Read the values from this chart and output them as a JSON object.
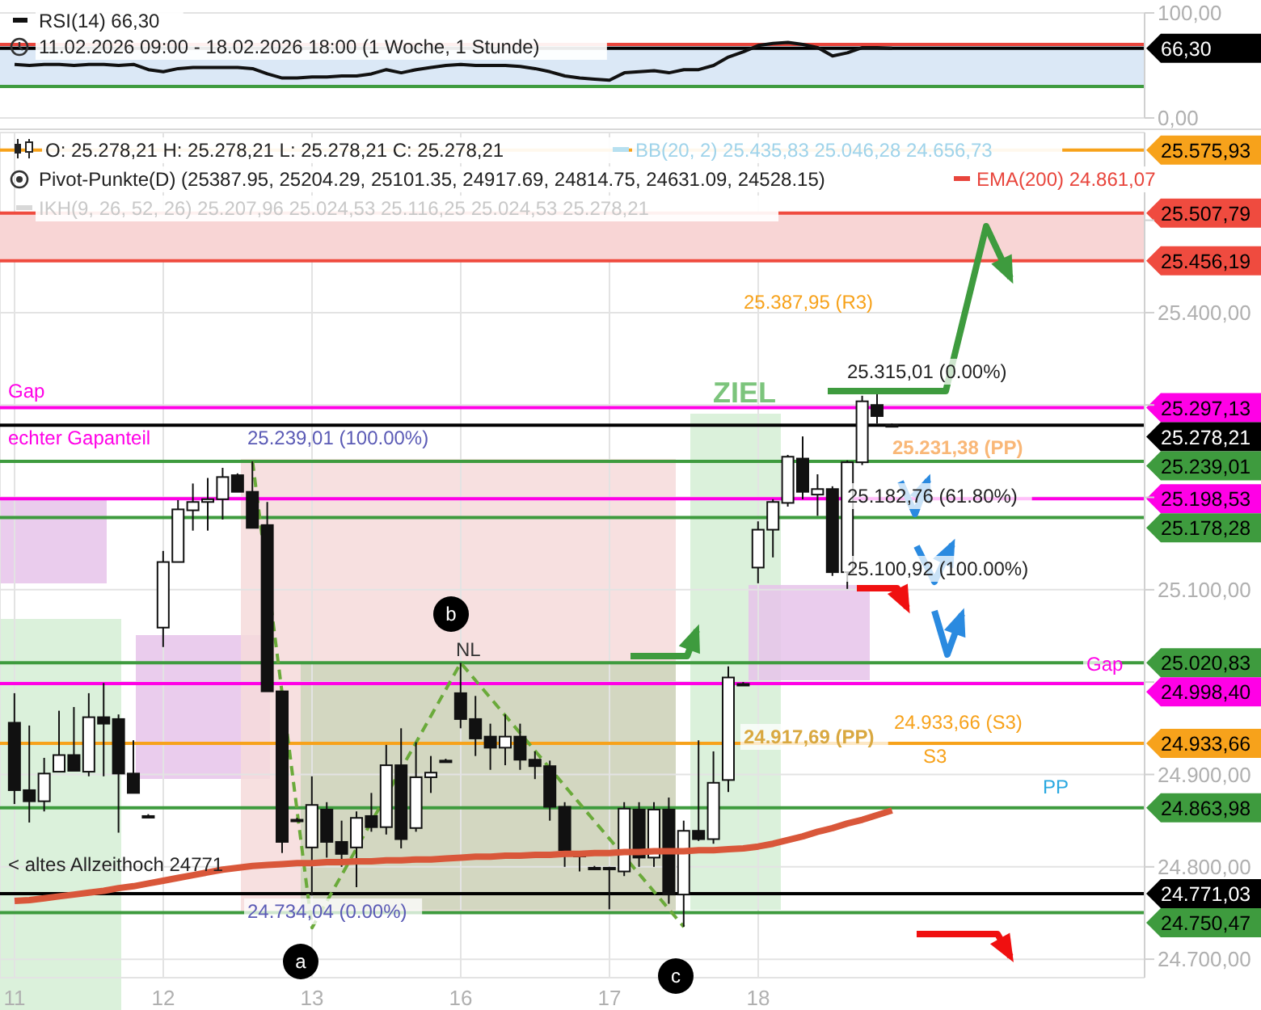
{
  "chart_data": [
    {
      "type": "line",
      "color": "#111111",
      "grid": "y",
      "tick_labels": "y",
      "categories": [
        null,
        null,
        null,
        null,
        null,
        null,
        null,
        null,
        null,
        null,
        null,
        null,
        null,
        null,
        null,
        null,
        null,
        null,
        null,
        null,
        null,
        null,
        null,
        null,
        null,
        null,
        null,
        null,
        null,
        null,
        null,
        null,
        null,
        null,
        null,
        null,
        null,
        null,
        null,
        null,
        null,
        null,
        null,
        null,
        null,
        null,
        null,
        null,
        null,
        null,
        null,
        null,
        null,
        null,
        null,
        null,
        null,
        null,
        null,
        null,
        null,
        null,
        null,
        null,
        null,
        null,
        null,
        null,
        null,
        null,
        null,
        null,
        null,
        null,
        null,
        null
      ],
      "values": [
        51,
        50,
        51,
        51,
        50,
        51,
        51,
        50,
        51,
        46,
        44,
        47,
        48,
        48,
        48,
        48,
        47,
        42,
        38,
        38,
        39,
        39,
        40,
        40,
        42,
        46,
        43,
        46,
        48,
        50,
        51,
        50,
        50,
        50,
        49,
        47,
        44,
        40,
        38,
        37,
        36,
        43,
        44,
        45,
        43,
        46,
        46,
        50,
        58,
        63,
        69,
        71,
        72,
        70,
        67,
        59,
        62,
        67,
        67,
        66.3,
        null,
        null,
        null,
        null,
        null,
        null,
        null,
        null,
        null,
        null,
        null,
        null,
        null,
        null,
        null,
        null
      ],
      "ylim": [
        0,
        100
      ],
      "yticks": [
        {
          "value": 0,
          "label": "0,00"
        },
        {
          "value": 100,
          "label": "100,00"
        }
      ],
      "ref_lines": [
        {
          "axis": "y",
          "value": 70,
          "color": "#e8453c"
        },
        {
          "axis": "y",
          "value": 30,
          "color": "#3e9b3e"
        },
        {
          "axis": "y",
          "value": 66.3,
          "label": "66,30",
          "color": "#000000"
        }
      ],
      "bands": [
        {
          "axis": "y",
          "from": 30,
          "to": 70,
          "color": "#dbe8f6"
        }
      ],
      "annotations": [
        "RSI(14)  66,30",
        "11.02.2026 09:00 - 18.02.2026 18:00  (1 Woche, 1 Stunde)"
      ]
    },
    {
      "type": "candlestick",
      "color": "#111111",
      "grid": true,
      "categories": [
        "11",
        null,
        null,
        null,
        null,
        null,
        null,
        null,
        null,
        null,
        "12",
        null,
        null,
        null,
        null,
        null,
        null,
        null,
        null,
        null,
        "13",
        null,
        null,
        null,
        null,
        null,
        null,
        null,
        null,
        null,
        "16",
        null,
        null,
        null,
        null,
        null,
        null,
        null,
        null,
        null,
        "17",
        null,
        null,
        null,
        null,
        null,
        null,
        null,
        null,
        null,
        "18",
        null,
        null,
        null,
        null,
        null,
        null,
        null,
        null,
        null,
        null,
        null,
        null,
        null,
        null,
        null,
        null,
        null,
        null,
        null,
        null,
        null,
        null,
        null,
        null,
        null
      ],
      "ohlc": [
        [
          24956,
          24988,
          24868,
          24883
        ],
        [
          24883,
          24953,
          24848,
          24871
        ],
        [
          24871,
          24918,
          24860,
          24901
        ],
        [
          24903,
          24969,
          24903,
          24921
        ],
        [
          24921,
          24973,
          24904,
          24904
        ],
        [
          24903,
          24988,
          24898,
          24962
        ],
        [
          24962,
          24999,
          24898,
          24955
        ],
        [
          24960,
          24965,
          24837,
          24901
        ],
        [
          24901,
          24937,
          24880,
          24880
        ],
        [
          24855,
          24857,
          24853,
          24855
        ],
        [
          25059,
          25142,
          25038,
          25130
        ],
        [
          25130,
          25197,
          25130,
          25187
        ],
        [
          25186,
          25215,
          25164,
          25195
        ],
        [
          25195,
          25221,
          25164,
          25198
        ],
        [
          25198,
          25232,
          25176,
          25222
        ],
        [
          25224,
          25226,
          25206,
          25206
        ],
        [
          25206,
          25239.01,
          25167,
          25167
        ],
        [
          25170,
          25195,
          24990,
          24990
        ],
        [
          24990,
          24990,
          24815,
          24827
        ],
        [
          24851,
          24853,
          24849,
          24851
        ],
        [
          24821,
          24898,
          24769,
          24867
        ],
        [
          24862,
          24870,
          24810,
          24827
        ],
        [
          24827,
          24850,
          24800,
          24814
        ],
        [
          24821,
          24860,
          24778,
          24853
        ],
        [
          24855,
          24880,
          24838,
          24843
        ],
        [
          24843,
          24932,
          24835,
          24910
        ],
        [
          24910,
          24950,
          24820,
          24830
        ],
        [
          24842,
          24935,
          24838,
          24897
        ],
        [
          24897,
          24920,
          24880,
          24902
        ],
        [
          24915,
          24917,
          24913,
          24915
        ],
        [
          24988,
          25020.83,
          24950,
          24960
        ],
        [
          24960,
          24985,
          24920,
          24939
        ],
        [
          24941,
          24955,
          24905,
          24929
        ],
        [
          24929,
          24965,
          24910,
          24941
        ],
        [
          24941,
          24955,
          24905,
          24916
        ],
        [
          24916,
          24925,
          24895,
          24909
        ],
        [
          24909,
          24915,
          24850,
          24865
        ],
        [
          24865,
          24870,
          24800,
          24818
        ],
        [
          24813,
          24815,
          24795,
          24813
        ],
        [
          24799,
          24801,
          24797,
          24799
        ],
        [
          24799,
          24800,
          24754,
          24799
        ],
        [
          24795,
          24870,
          24790,
          24863
        ],
        [
          24862,
          24870,
          24800,
          24810
        ],
        [
          24810,
          24870,
          24800,
          24862
        ],
        [
          24862,
          24875,
          24760,
          24770
        ],
        [
          24770,
          24850,
          24735,
          24839
        ],
        [
          24839,
          24937,
          24828,
          24830
        ],
        [
          24830,
          24925,
          24825,
          24891
        ],
        [
          24894,
          25017,
          24881,
          25005
        ],
        [
          24998,
          25000,
          24996,
          24998
        ],
        [
          25124,
          25174,
          25107,
          25165
        ],
        [
          25165,
          25198,
          25135,
          25195
        ],
        [
          25194,
          25246,
          25190,
          25244
        ],
        [
          25242,
          25266,
          25198,
          25206
        ],
        [
          25203,
          25225,
          25180,
          25209
        ],
        [
          25209,
          25212,
          25115,
          25119
        ],
        [
          25119,
          25240,
          25100.92,
          25238
        ],
        [
          25238,
          25310,
          25235,
          25304
        ],
        [
          25300,
          25315.01,
          25280,
          25288
        ],
        [
          25278.21,
          25280,
          25276,
          25278.21
        ],
        null,
        null,
        null,
        null,
        null,
        null,
        null,
        null,
        null,
        null,
        null,
        null,
        null,
        null,
        null,
        null
      ],
      "series": [
        {
          "type": "line",
          "color": "#d9573a",
          "values": [
            24763,
            24764,
            24766,
            24768,
            24770,
            24772,
            24774,
            24777,
            24779,
            24782,
            24785,
            24788,
            24791,
            24794,
            24797,
            24799,
            24801,
            24802,
            24803,
            24804,
            24804,
            24805,
            24805,
            24806,
            24806,
            24807,
            24807,
            24808,
            24808,
            24809,
            24810,
            24811,
            24811,
            24812,
            24812,
            24813,
            24813,
            24814,
            24814,
            24815,
            24815,
            24816,
            24816,
            24817,
            24817,
            24817,
            24818,
            24818,
            24819,
            24820,
            24822,
            24825,
            24829,
            24833,
            24838,
            24842,
            24847,
            24851,
            24856,
            24861.07,
            null,
            null,
            null,
            null,
            null,
            null,
            null,
            null,
            null,
            null,
            null,
            null,
            null,
            null,
            null,
            null
          ]
        },
        {
          "type": "line",
          "color": "#6aaa3a",
          "line_style": "dashed",
          "values": [
            null,
            null,
            null,
            null,
            null,
            null,
            null,
            null,
            null,
            null,
            null,
            null,
            null,
            null,
            null,
            null,
            25239.01,
            null,
            null,
            null,
            24734.04,
            null,
            null,
            null,
            null,
            null,
            null,
            null,
            null,
            null,
            25020.83,
            null,
            null,
            null,
            null,
            null,
            null,
            null,
            null,
            null,
            null,
            null,
            null,
            null,
            null,
            24735,
            null,
            null,
            null,
            null,
            null,
            null,
            null,
            null,
            null,
            null,
            null,
            null,
            null,
            null,
            null,
            null,
            null,
            null,
            null,
            null,
            null,
            null,
            null,
            null,
            null,
            null,
            null,
            null,
            null,
            null
          ]
        }
      ],
      "ylim": [
        24680,
        25595
      ],
      "yticks": [
        {
          "value": 24700,
          "label": "24.700,00"
        },
        {
          "value": 24800,
          "label": "24.800,00"
        },
        {
          "value": 24900,
          "label": "24.900,00"
        },
        {
          "value": 25000,
          "label": null
        },
        {
          "value": 25100,
          "label": "25.100,00"
        },
        {
          "value": 25200,
          "label": null
        },
        {
          "value": 25300,
          "label": null
        },
        {
          "value": 25400,
          "label": "25.400,00"
        },
        {
          "value": 25500,
          "label": null
        }
      ],
      "ref_lines": [
        {
          "axis": "y",
          "value": 25575.93,
          "label": "25.575,93",
          "color": "#f7a21b"
        },
        {
          "axis": "y",
          "value": 25507.79,
          "label": "25.507,79",
          "color": "#ef4b3f"
        },
        {
          "axis": "y",
          "value": 25456.19,
          "label": "25.456,19",
          "color": "#ef4b3f"
        },
        {
          "axis": "y",
          "value": 25297.13,
          "label": "25.297,13",
          "color": "#ff00e6"
        },
        {
          "axis": "y",
          "value": 25278.21,
          "label": "25.278,21",
          "color": "#000000"
        },
        {
          "axis": "y",
          "value": 25239.01,
          "label": "25.239,01",
          "color": "#3e9b3e"
        },
        {
          "axis": "y",
          "value": 25198.53,
          "label": "25.198,53",
          "color": "#ff00e6"
        },
        {
          "axis": "y",
          "value": 25178.28,
          "label": "25.178,28",
          "color": "#3e9b3e"
        },
        {
          "axis": "y",
          "value": 25020.83,
          "label": "25.020,83",
          "color": "#3e9b3e"
        },
        {
          "axis": "y",
          "value": 24998.4,
          "label": "24.998,40",
          "color": "#ff00e6"
        },
        {
          "axis": "y",
          "value": 24933.66,
          "label": "24.933,66",
          "color": "#f7a21b"
        },
        {
          "axis": "y",
          "value": 24863.98,
          "label": "24.863,98",
          "color": "#3e9b3e"
        },
        {
          "axis": "y",
          "value": 24771.03,
          "label": "24.771,03",
          "color": "#000000"
        },
        {
          "axis": "y",
          "value": 24750.47,
          "label": "24.750,47",
          "color": "#3e9b3e"
        }
      ],
      "bands": [
        {
          "axis": "y",
          "from": 25456.19,
          "to": 25507.79,
          "color": "#f8d5d5"
        }
      ],
      "annotations": [
        "O: 25.278,21   H: 25.278,21   L: 25.278,21   C: 25.278,21",
        "BB(20, 2)  25.435,83  25.046,28  24.656,73",
        "Pivot-Punkte(D)  (25387.95,  25204.29,  25101.35,  24917.69,  24814.75,  24631.09,  24528.15)",
        "EMA(200)  24.861,07",
        "IKH(9, 26, 52, 26)  25.207,96  25.024,53  25.116,25  25.024,53  25.278,21",
        "Gap",
        "echter Gapanteil",
        "25.239,01 (100.00%)",
        "24.734,04 (0.00%)",
        "< altes Allzeithoch 24771",
        "NL",
        "ZIEL",
        "25.387,95 (R3)",
        "25.315,01 (0.00%)",
        "25.231,38 (PP)",
        "25.182,76 (61.80%)",
        "25.100,92 (100.00%)",
        "Gap",
        "24.933,66 (S3)",
        "24.917,69 (PP)",
        "S3",
        "PP",
        "a",
        "b",
        "c"
      ]
    }
  ]
}
